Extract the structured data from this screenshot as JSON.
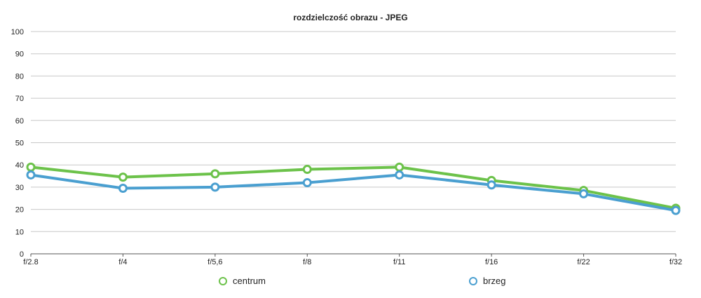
{
  "chart_data": {
    "type": "line",
    "title": "rozdzielczość obrazu - JPEG",
    "xlabel": "",
    "ylabel": "",
    "categories": [
      "f/2.8",
      "f/4",
      "f/5,6",
      "f/8",
      "f/11",
      "f/16",
      "f/22",
      "f/32"
    ],
    "ylim": [
      0,
      100
    ],
    "yticks": [
      0,
      10,
      20,
      30,
      40,
      50,
      60,
      70,
      80,
      90,
      100
    ],
    "grid": true,
    "legend_position": "bottom",
    "series": [
      {
        "name": "centrum",
        "color": "#6cc24a",
        "values": [
          39,
          34.5,
          36,
          38,
          39,
          33,
          28.5,
          20.5
        ]
      },
      {
        "name": "brzeg",
        "color": "#4a9fd0",
        "values": [
          35.5,
          29.5,
          30,
          32,
          35.5,
          31,
          27,
          19.5
        ]
      }
    ]
  }
}
